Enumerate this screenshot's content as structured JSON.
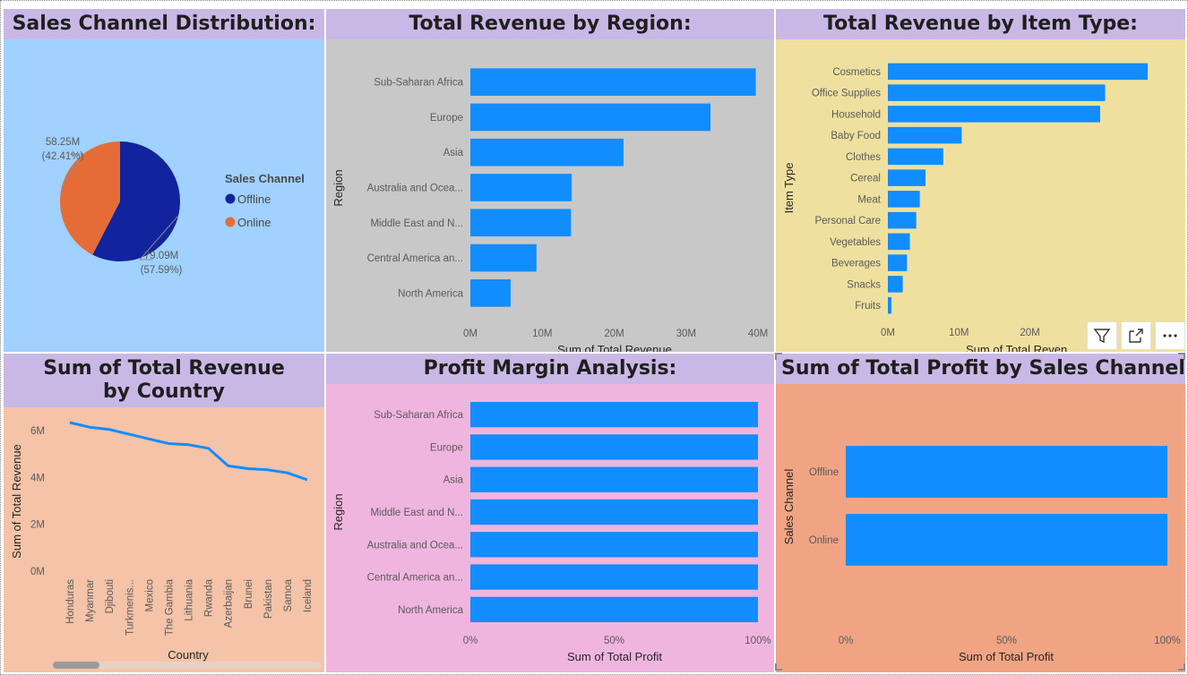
{
  "colors": {
    "title_bg": "#c9b8e6",
    "bar": "#118dff",
    "offline": "#12239e",
    "online": "#e66c37",
    "tile1_bg": "#a0d1ff",
    "tile2_bg": "#c8c8c8",
    "tile3_bg": "#efe09f",
    "tile4_bg": "#f4c3a8",
    "tile5_bg": "#f0b5de",
    "tile6_bg": "#f0a484"
  },
  "tiles": {
    "sales_channel": {
      "title": "Sales Channel Distribution:"
    },
    "revenue_region": {
      "title": "Total Revenue by Region:"
    },
    "revenue_item": {
      "title": "Total Revenue by Item Type:"
    },
    "revenue_country": {
      "title": "Sum of Total Revenue by Country"
    },
    "profit_margin": {
      "title": "Profit Margin Analysis:"
    },
    "profit_channel": {
      "title": "Sum of Total Profit by Sales Channel"
    }
  },
  "visual_header": {
    "icons": [
      "filter-icon",
      "focus-mode-icon",
      "more-options-icon"
    ]
  },
  "chart_data": [
    {
      "id": "sales_channel",
      "type": "pie",
      "legend_title": "Sales Channel",
      "legend_position": "right",
      "slices": [
        {
          "name": "Offline",
          "value": 79.09,
          "label": "79.09M",
          "pct_label": "(57.59%)",
          "color": "#12239e"
        },
        {
          "name": "Online",
          "value": 58.25,
          "label": "58.25M",
          "pct_label": "(42.41%)",
          "color": "#e66c37"
        }
      ]
    },
    {
      "id": "revenue_region",
      "type": "bar",
      "orientation": "horizontal",
      "categories": [
        "Sub-Saharan Africa",
        "Europe",
        "Asia",
        "Australia and Ocea...",
        "Middle East and N...",
        "Central America an...",
        "North America"
      ],
      "values": [
        39.7,
        33.4,
        21.3,
        14.1,
        14.0,
        9.2,
        5.6
      ],
      "xlim": [
        0,
        40
      ],
      "ticks": [
        0,
        10,
        20,
        30,
        40
      ],
      "tick_labels": [
        "0M",
        "10M",
        "20M",
        "30M",
        "40M"
      ],
      "xlabel": "Sum of Total Revenue",
      "ylabel": "Region"
    },
    {
      "id": "revenue_item",
      "type": "bar",
      "orientation": "horizontal",
      "categories": [
        "Cosmetics",
        "Office Supplies",
        "Household",
        "Baby Food",
        "Clothes",
        "Cereal",
        "Meat",
        "Personal Care",
        "Vegetables",
        "Beverages",
        "Snacks",
        "Fruits"
      ],
      "values": [
        36.6,
        30.6,
        29.9,
        10.4,
        7.8,
        5.3,
        4.5,
        4.0,
        3.1,
        2.7,
        2.1,
        0.5
      ],
      "xlim": [
        0,
        40
      ],
      "ticks": [
        0,
        10,
        20
      ],
      "tick_labels": [
        "0M",
        "10M",
        "20M"
      ],
      "xlabel": "Sum of Total Reven",
      "ylabel": "Item Type"
    },
    {
      "id": "revenue_country",
      "type": "line",
      "categories": [
        "Honduras",
        "Myanmar",
        "Djibouti",
        "Turkmenis...",
        "Mexico",
        "The Gambia",
        "Lithuania",
        "Rwanda",
        "Azerbaijan",
        "Brunei",
        "Pakistan",
        "Samoa",
        "Iceland"
      ],
      "values": [
        6.35,
        6.15,
        6.05,
        5.85,
        5.65,
        5.45,
        5.4,
        5.25,
        4.5,
        4.38,
        4.33,
        4.2,
        3.9
      ],
      "ylim": [
        0,
        7
      ],
      "ticks": [
        0,
        2,
        4,
        6
      ],
      "tick_labels": [
        "0M",
        "2M",
        "4M",
        "6M"
      ],
      "xlabel": "Country",
      "ylabel": "Sum of Total Revenue"
    },
    {
      "id": "profit_margin",
      "type": "bar",
      "orientation": "horizontal",
      "stacked_percent": true,
      "categories": [
        "Sub-Saharan Africa",
        "Europe",
        "Asia",
        "Middle East and N...",
        "Australia and Ocea...",
        "Central America an...",
        "North America"
      ],
      "values": [
        100,
        100,
        100,
        100,
        100,
        100,
        100
      ],
      "xlim": [
        0,
        100
      ],
      "ticks": [
        0,
        50,
        100
      ],
      "tick_labels": [
        "0%",
        "50%",
        "100%"
      ],
      "xlabel": "Sum of Total Profit",
      "ylabel": "Region"
    },
    {
      "id": "profit_channel",
      "type": "bar",
      "orientation": "horizontal",
      "stacked_percent": true,
      "categories": [
        "Offline",
        "Online"
      ],
      "values": [
        100,
        100
      ],
      "xlim": [
        0,
        100
      ],
      "ticks": [
        0,
        50,
        100
      ],
      "tick_labels": [
        "0%",
        "50%",
        "100%"
      ],
      "xlabel": "Sum of Total Profit",
      "ylabel": "Sales Channel"
    }
  ]
}
